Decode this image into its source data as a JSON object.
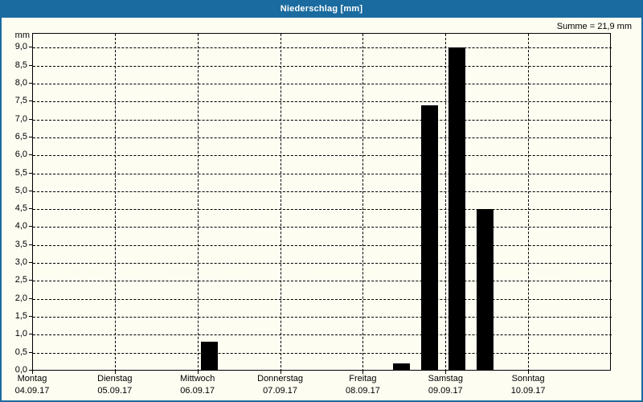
{
  "window": {
    "title": "Niederschlag [mm]"
  },
  "summary": {
    "text": "Summe = 21,9 mm"
  },
  "chart_data": {
    "type": "bar",
    "title": "Niederschlag [mm]",
    "ylabel": "mm",
    "xlabel": "",
    "ylim": [
      0,
      9.41
    ],
    "x_range_days": [
      0,
      7
    ],
    "grid": "dashed horizontal and vertical",
    "legend": "none",
    "bar_color": "#000000",
    "sum_label": "Summe = 21,9 mm",
    "sum_mm": 21.9,
    "y_ticks": [
      {
        "value": 0.0,
        "label": "0,0"
      },
      {
        "value": 0.5,
        "label": "0,5"
      },
      {
        "value": 1.0,
        "label": "1,0"
      },
      {
        "value": 1.5,
        "label": "1,5"
      },
      {
        "value": 2.0,
        "label": "2,0"
      },
      {
        "value": 2.5,
        "label": "2,5"
      },
      {
        "value": 3.0,
        "label": "3,0"
      },
      {
        "value": 3.5,
        "label": "3,5"
      },
      {
        "value": 4.0,
        "label": "4,0"
      },
      {
        "value": 4.5,
        "label": "4,5"
      },
      {
        "value": 5.0,
        "label": "5,0"
      },
      {
        "value": 5.5,
        "label": "5,5"
      },
      {
        "value": 6.0,
        "label": "6,0"
      },
      {
        "value": 6.5,
        "label": "6,5"
      },
      {
        "value": 7.0,
        "label": "7,0"
      },
      {
        "value": 7.5,
        "label": "7,5"
      },
      {
        "value": 8.0,
        "label": "8,0"
      },
      {
        "value": 8.5,
        "label": "8,5"
      },
      {
        "value": 9.0,
        "label": "9,0"
      }
    ],
    "x_days": [
      {
        "weekday": "Montag",
        "date": "04.09.17"
      },
      {
        "weekday": "Dienstag",
        "date": "05.09.17"
      },
      {
        "weekday": "Mittwoch",
        "date": "06.09.17"
      },
      {
        "weekday": "Donnerstag",
        "date": "07.09.17"
      },
      {
        "weekday": "Freitag",
        "date": "08.09.17"
      },
      {
        "weekday": "Samstag",
        "date": "09.09.17"
      },
      {
        "weekday": "Sonntag",
        "date": "10.09.17"
      }
    ],
    "bars": [
      {
        "day": "Mittwoch 06.09.17",
        "x_days": 2.13,
        "value_mm": 0.8
      },
      {
        "day": "Freitag 08.09.17",
        "x_days": 4.46,
        "value_mm": 0.2
      },
      {
        "day": "Freitag 08.09.17",
        "x_days": 4.8,
        "value_mm": 7.4
      },
      {
        "day": "Samstag 09.09.17",
        "x_days": 5.13,
        "value_mm": 9.0
      },
      {
        "day": "Samstag 09.09.17",
        "x_days": 5.47,
        "value_mm": 4.5
      }
    ]
  },
  "colors": {
    "titlebar": "#1a6b9f",
    "window_border": "#1a6b9f",
    "background": "#fdfdf2",
    "bar": "#000000",
    "grid": "#000000",
    "text": "#000000"
  }
}
